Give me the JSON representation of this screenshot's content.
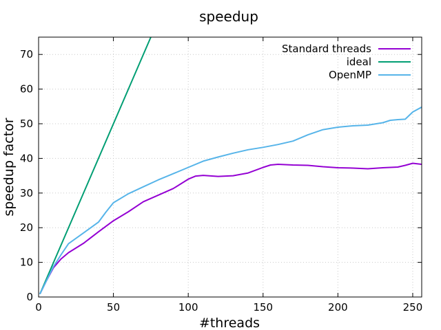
{
  "chart_data": {
    "type": "line",
    "title": "speedup",
    "xlabel": "#threads",
    "ylabel": "speedup factor",
    "xlim": [
      0,
      256
    ],
    "ylim": [
      0,
      75
    ],
    "xticks": [
      0,
      50,
      100,
      150,
      200,
      250
    ],
    "yticks": [
      0,
      10,
      20,
      30,
      40,
      50,
      60,
      70
    ],
    "grid": true,
    "legend_position": "top-right",
    "series": [
      {
        "name": "Standard threads",
        "color": "#9400d3",
        "points": [
          [
            1,
            1
          ],
          [
            5,
            4.5
          ],
          [
            10,
            8.5
          ],
          [
            15,
            11
          ],
          [
            20,
            12.8
          ],
          [
            30,
            15.5
          ],
          [
            40,
            18.8
          ],
          [
            50,
            22
          ],
          [
            60,
            24.6
          ],
          [
            70,
            27.5
          ],
          [
            80,
            29.4
          ],
          [
            90,
            31.3
          ],
          [
            100,
            34
          ],
          [
            105,
            34.9
          ],
          [
            110,
            35.1
          ],
          [
            120,
            34.8
          ],
          [
            130,
            35
          ],
          [
            140,
            35.8
          ],
          [
            150,
            37.4
          ],
          [
            155,
            38.1
          ],
          [
            160,
            38.3
          ],
          [
            170,
            38.1
          ],
          [
            180,
            38
          ],
          [
            190,
            37.6
          ],
          [
            200,
            37.3
          ],
          [
            210,
            37.2
          ],
          [
            220,
            37
          ],
          [
            230,
            37.3
          ],
          [
            240,
            37.5
          ],
          [
            245,
            38
          ],
          [
            250,
            38.6
          ],
          [
            256,
            38.3
          ]
        ]
      },
      {
        "name": "ideal",
        "color": "#009e73",
        "points": [
          [
            1,
            1
          ],
          [
            75,
            75
          ]
        ]
      },
      {
        "name": "OpenMP",
        "color": "#56b4e9",
        "points": [
          [
            1,
            1
          ],
          [
            5,
            4.5
          ],
          [
            10,
            8.8
          ],
          [
            15,
            12.2
          ],
          [
            20,
            15.4
          ],
          [
            30,
            18.5
          ],
          [
            40,
            21.6
          ],
          [
            45,
            24.5
          ],
          [
            50,
            27.2
          ],
          [
            60,
            29.8
          ],
          [
            70,
            31.8
          ],
          [
            80,
            33.8
          ],
          [
            90,
            35.6
          ],
          [
            100,
            37.4
          ],
          [
            110,
            39.2
          ],
          [
            120,
            40.4
          ],
          [
            130,
            41.5
          ],
          [
            140,
            42.5
          ],
          [
            150,
            43.2
          ],
          [
            160,
            44
          ],
          [
            170,
            45
          ],
          [
            180,
            46.8
          ],
          [
            190,
            48.3
          ],
          [
            200,
            49
          ],
          [
            210,
            49.4
          ],
          [
            220,
            49.6
          ],
          [
            230,
            50.3
          ],
          [
            235,
            51
          ],
          [
            240,
            51.2
          ],
          [
            245,
            51.3
          ],
          [
            250,
            53.4
          ],
          [
            256,
            54.8
          ]
        ]
      }
    ]
  }
}
